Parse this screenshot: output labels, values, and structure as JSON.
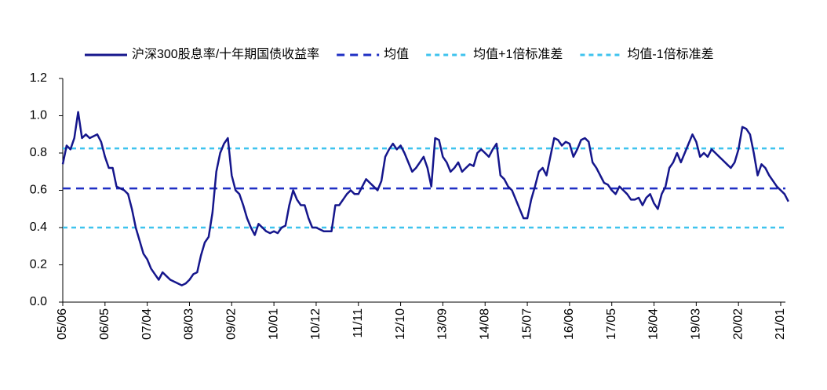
{
  "chart_data": {
    "type": "line",
    "categories": [
      "05/06",
      null,
      null,
      null,
      null,
      null,
      null,
      null,
      null,
      null,
      null,
      "06/05",
      null,
      null,
      null,
      null,
      null,
      null,
      null,
      null,
      null,
      null,
      "07/04",
      null,
      null,
      null,
      null,
      null,
      null,
      null,
      null,
      null,
      null,
      "08/03",
      null,
      null,
      null,
      null,
      null,
      null,
      null,
      null,
      null,
      null,
      "09/02",
      null,
      null,
      null,
      null,
      null,
      null,
      null,
      null,
      null,
      null,
      "10/01",
      null,
      null,
      null,
      null,
      null,
      null,
      null,
      null,
      null,
      null,
      "10/12",
      null,
      null,
      null,
      null,
      null,
      null,
      null,
      null,
      null,
      null,
      "11/11",
      null,
      null,
      null,
      null,
      null,
      null,
      null,
      null,
      null,
      null,
      "12/10",
      null,
      null,
      null,
      null,
      null,
      null,
      null,
      null,
      null,
      null,
      "13/09",
      null,
      null,
      null,
      null,
      null,
      null,
      null,
      null,
      null,
      null,
      "14/08",
      null,
      null,
      null,
      null,
      null,
      null,
      null,
      null,
      null,
      null,
      "15/07",
      null,
      null,
      null,
      null,
      null,
      null,
      null,
      null,
      null,
      null,
      "16/06",
      null,
      null,
      null,
      null,
      null,
      null,
      null,
      null,
      null,
      null,
      "17/05",
      null,
      null,
      null,
      null,
      null,
      null,
      null,
      null,
      null,
      null,
      "18/04",
      null,
      null,
      null,
      null,
      null,
      null,
      null,
      null,
      null,
      null,
      "19/03",
      null,
      null,
      null,
      null,
      null,
      null,
      null,
      null,
      null,
      null,
      "20/02",
      null,
      null,
      null,
      null,
      null,
      null,
      null,
      null,
      null,
      null,
      "21/01",
      null,
      null
    ],
    "series": [
      {
        "name": "沪深300股息率/十年期国债收益率",
        "color": "#15168c",
        "values": [
          0.74,
          0.84,
          0.82,
          0.88,
          1.02,
          0.88,
          0.9,
          0.88,
          0.89,
          0.9,
          0.86,
          0.78,
          0.72,
          0.72,
          0.62,
          0.61,
          0.6,
          0.58,
          0.5,
          0.4,
          0.33,
          0.26,
          0.23,
          0.18,
          0.15,
          0.12,
          0.16,
          0.14,
          0.12,
          0.11,
          0.1,
          0.09,
          0.1,
          0.12,
          0.15,
          0.16,
          0.25,
          0.32,
          0.35,
          0.48,
          0.7,
          0.8,
          0.85,
          0.88,
          0.68,
          0.6,
          0.58,
          0.52,
          0.45,
          0.4,
          0.36,
          0.42,
          0.4,
          0.38,
          0.37,
          0.38,
          0.37,
          0.4,
          0.41,
          0.52,
          0.6,
          0.55,
          0.52,
          0.52,
          0.45,
          0.4,
          0.4,
          0.39,
          0.38,
          0.38,
          0.38,
          0.52,
          0.52,
          0.55,
          0.58,
          0.6,
          0.58,
          0.58,
          0.62,
          0.66,
          0.64,
          0.62,
          0.6,
          0.65,
          0.78,
          0.82,
          0.85,
          0.82,
          0.84,
          0.8,
          0.75,
          0.7,
          0.72,
          0.75,
          0.78,
          0.72,
          0.62,
          0.88,
          0.87,
          0.78,
          0.75,
          0.7,
          0.72,
          0.75,
          0.7,
          0.72,
          0.74,
          0.73,
          0.8,
          0.82,
          0.8,
          0.78,
          0.82,
          0.85,
          0.68,
          0.66,
          0.62,
          0.6,
          0.55,
          0.5,
          0.45,
          0.45,
          0.55,
          0.62,
          0.7,
          0.72,
          0.68,
          0.78,
          0.88,
          0.87,
          0.84,
          0.86,
          0.85,
          0.78,
          0.82,
          0.87,
          0.88,
          0.86,
          0.75,
          0.72,
          0.68,
          0.64,
          0.63,
          0.6,
          0.58,
          0.62,
          0.6,
          0.58,
          0.55,
          0.55,
          0.56,
          0.52,
          0.56,
          0.58,
          0.53,
          0.5,
          0.58,
          0.62,
          0.72,
          0.75,
          0.8,
          0.75,
          0.8,
          0.85,
          0.9,
          0.86,
          0.78,
          0.8,
          0.78,
          0.82,
          0.8,
          0.78,
          0.76,
          0.74,
          0.72,
          0.75,
          0.82,
          0.94,
          0.93,
          0.9,
          0.8,
          0.68,
          0.74,
          0.72,
          0.68,
          0.65,
          0.62,
          0.6,
          0.58,
          0.54
        ]
      }
    ],
    "reference_lines": [
      {
        "name": "均值",
        "value": 0.61,
        "color": "#1f2fc4"
      },
      {
        "name": "均值+1倍标准差",
        "value": 0.825,
        "color": "#3ec3ee"
      },
      {
        "name": "均值-1倍标准差",
        "value": 0.4,
        "color": "#3ec3ee"
      }
    ],
    "ylim": [
      0,
      1.2
    ],
    "yticks": [
      {
        "value": 0,
        "label": "0.0"
      },
      0.2,
      0.4,
      0.6,
      0.8,
      {
        "value": 1,
        "label": "1.0"
      },
      1.2
    ],
    "grid": false
  }
}
